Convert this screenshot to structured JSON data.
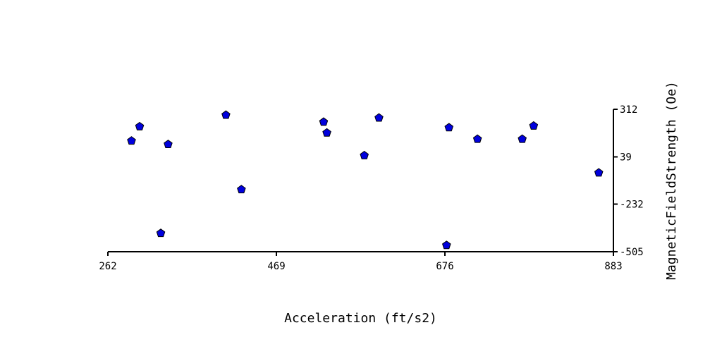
{
  "chart_data": {
    "type": "scatter",
    "title": "",
    "xlabel": "Acceleration (ft/s2)",
    "ylabel": "MagneticFieldStrength (Oe)",
    "xlim": [
      262,
      883
    ],
    "ylim": [
      -505,
      312
    ],
    "x_ticks": [
      "262",
      "469",
      "676",
      "883"
    ],
    "y_ticks": [
      "312",
      "39",
      "-232",
      "-505"
    ],
    "grid": false,
    "y_axis_position": "right",
    "marker": "pentagon",
    "marker_color": "#0000dd",
    "points": [
      {
        "x": 291,
        "y": 131
      },
      {
        "x": 301,
        "y": 213
      },
      {
        "x": 327,
        "y": -399
      },
      {
        "x": 336,
        "y": 111
      },
      {
        "x": 407,
        "y": 279
      },
      {
        "x": 426,
        "y": -148
      },
      {
        "x": 527,
        "y": 239
      },
      {
        "x": 531,
        "y": 177
      },
      {
        "x": 577,
        "y": 47
      },
      {
        "x": 595,
        "y": 263
      },
      {
        "x": 678,
        "y": -468
      },
      {
        "x": 681,
        "y": 207
      },
      {
        "x": 716,
        "y": 141
      },
      {
        "x": 771,
        "y": 141
      },
      {
        "x": 785,
        "y": 217
      },
      {
        "x": 865,
        "y": -52
      }
    ]
  }
}
